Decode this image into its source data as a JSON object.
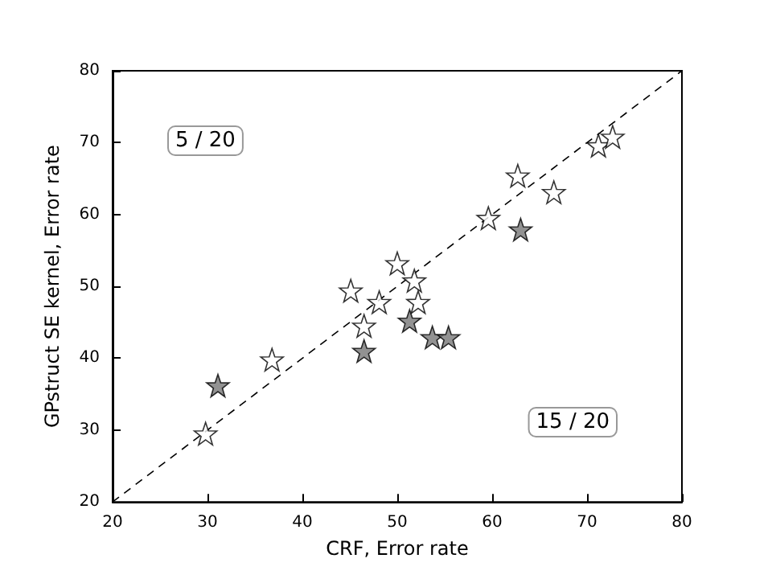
{
  "chart_data": {
    "type": "scatter",
    "xlabel": "CRF, Error rate",
    "ylabel": "GPstruct SE kernel, Error rate",
    "xlim": [
      20,
      80
    ],
    "ylim": [
      20,
      80
    ],
    "xticks": [
      20,
      30,
      40,
      50,
      60,
      70,
      80
    ],
    "yticks": [
      20,
      30,
      40,
      50,
      60,
      70,
      80
    ],
    "grid": false,
    "annotations": [
      "5 / 20",
      "15 / 20"
    ],
    "series": [
      {
        "color": "#ffffff",
        "marker": "star",
        "x": [
          29.8,
          36.8,
          45.1,
          46.5,
          48.1,
          50.0,
          51.8,
          52.2,
          59.6,
          62.7,
          66.5,
          71.2,
          72.7
        ],
        "values": [
          29.5,
          39.8,
          49.4,
          44.5,
          47.8,
          53.2,
          50.8,
          47.8,
          59.5,
          65.4,
          63.1,
          69.6,
          70.8
        ]
      },
      {
        "color": "#777777",
        "marker": "star",
        "x": [
          31.1,
          46.5,
          51.3,
          53.7,
          55.4,
          63.0
        ],
        "values": [
          36.2,
          41.0,
          45.2,
          42.9,
          42.9,
          57.9
        ]
      },
      {
        "type": "line",
        "marker": "none",
        "line_style": "dashed",
        "color": "#000000",
        "x": [
          20,
          80
        ],
        "values": [
          20,
          80
        ]
      }
    ]
  }
}
